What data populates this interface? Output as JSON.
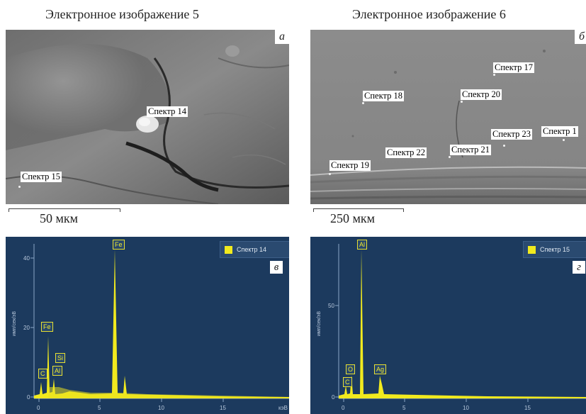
{
  "panels": {
    "top_left": {
      "title": "Электронное изображение 5",
      "corner": "а",
      "scale": "50 мкм",
      "labels": [
        "Спектр 14",
        "Спектр 15"
      ]
    },
    "top_right": {
      "title": "Электронное изображение 6",
      "corner": "б",
      "scale": "250 мкм",
      "labels": [
        "Спектр 17",
        "Спектр 18",
        "Спектр 20",
        "Спектр 23",
        "Спектр 1",
        "Спектр 21",
        "Спектр 22",
        "Спектр 19"
      ]
    },
    "bottom_left": {
      "legend": "Спектр 14",
      "corner": "в",
      "y_axis_label": "имп/сек/эВ",
      "x_unit": "кэВ",
      "y_ticks": [
        "40",
        "20",
        "0"
      ],
      "x_ticks": [
        "0",
        "5",
        "10",
        "15"
      ],
      "peaks": [
        "Fe",
        "Fe",
        "Si",
        "Al",
        "C"
      ]
    },
    "bottom_right": {
      "legend": "Спектр 15",
      "corner": "г",
      "y_axis_label": "имп/сек/эВ",
      "y_ticks": [
        "50",
        "0"
      ],
      "x_ticks": [
        "0",
        "5",
        "10",
        "15"
      ],
      "peaks": [
        "Al",
        "O",
        "C",
        "Ag"
      ]
    }
  },
  "colors": {
    "spectrum_bg": "#1c3a5e",
    "peak": "#f1ea1e"
  }
}
